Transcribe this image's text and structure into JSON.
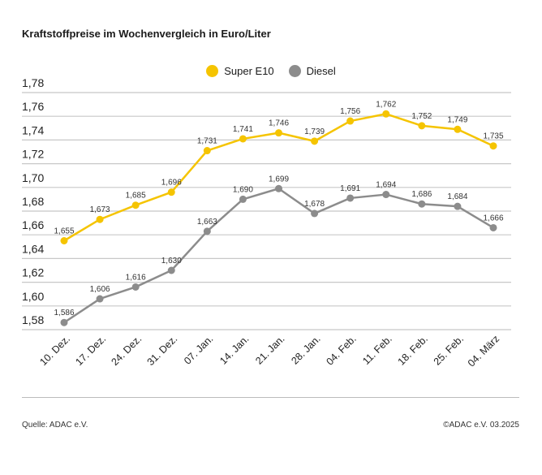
{
  "chart_data": {
    "type": "line",
    "title": "Kraftstoffpreise im Wochenvergleich in Euro/Liter",
    "categories": [
      "10. Dez.",
      "17. Dez.",
      "24. Dez.",
      "31. Dez.",
      "07. Jan.",
      "14. Jan.",
      "21. Jan.",
      "28. Jan.",
      "04. Feb.",
      "11. Feb.",
      "18. Feb.",
      "25. Feb.",
      "04. März"
    ],
    "series": [
      {
        "name": "Super E10",
        "color": "#f5c400",
        "values": [
          1.655,
          1.673,
          1.685,
          1.696,
          1.731,
          1.741,
          1.746,
          1.739,
          1.756,
          1.762,
          1.752,
          1.749,
          1.735
        ],
        "labels": [
          "1,655",
          "1,673",
          "1,685",
          "1,696",
          "1,731",
          "1,741",
          "1,746",
          "1,739",
          "1,756",
          "1,762",
          "1,752",
          "1,749",
          "1,735"
        ]
      },
      {
        "name": "Diesel",
        "color": "#8c8c8c",
        "values": [
          1.586,
          1.606,
          1.616,
          1.63,
          1.663,
          1.69,
          1.699,
          1.678,
          1.691,
          1.694,
          1.686,
          1.684,
          1.666
        ],
        "labels": [
          "1,586",
          "1,606",
          "1,616",
          "1,630",
          "1,663",
          "1,690",
          "1,699",
          "1,678",
          "1,691",
          "1,694",
          "1,686",
          "1,684",
          "1,666"
        ]
      }
    ],
    "yticks": [
      "1,58",
      "1,60",
      "1,62",
      "1,64",
      "1,66",
      "1,68",
      "1,70",
      "1,72",
      "1,74",
      "1,76",
      "1,78"
    ],
    "ylim": [
      1.58,
      1.78
    ],
    "grid": true,
    "legend": "top-center"
  },
  "footer": {
    "source": "Quelle: ADAC e.V.",
    "copyright": "©ADAC e.V. 03.2025"
  }
}
